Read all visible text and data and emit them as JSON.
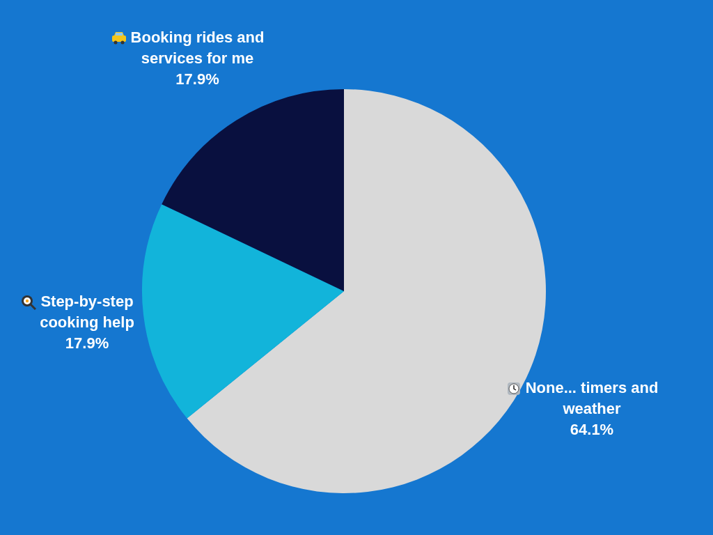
{
  "chart_data": {
    "type": "pie",
    "categories": [
      "None... timers and weather",
      "Step-by-step cooking help",
      "Booking rides and services for me"
    ],
    "values": [
      64.1,
      17.9,
      17.9
    ],
    "colors": [
      "#d9d9d9",
      "#12b4da",
      "#09103f"
    ],
    "value_labels": [
      "64.1%",
      "17.9%",
      "17.9%"
    ],
    "legend": false
  }
}
